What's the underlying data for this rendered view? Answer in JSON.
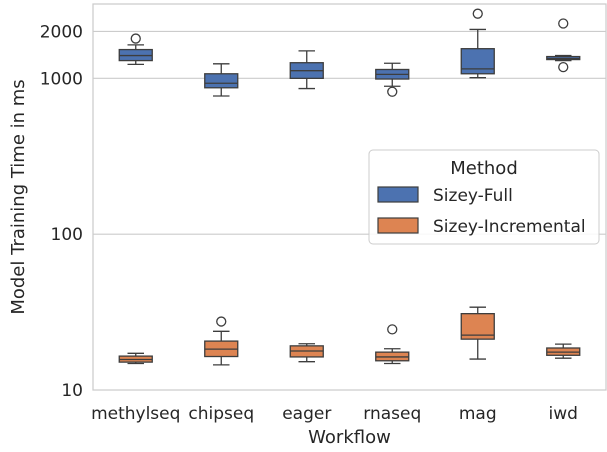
{
  "chart_data": {
    "type": "box",
    "title": "",
    "xlabel": "Workflow",
    "ylabel": "Model Training Time in ms",
    "y_scale": "log",
    "ylim": [
      10,
      3000
    ],
    "y_ticks": [
      10,
      100,
      1000,
      2000
    ],
    "y_tick_labels": [
      "10",
      "100",
      "1000",
      "2000"
    ],
    "grid": true,
    "categories": [
      "methylseq",
      "chipseq",
      "eager",
      "rnaseq",
      "mag",
      "iwd"
    ],
    "legend": {
      "title": "Method",
      "placement": "center-right"
    },
    "series": [
      {
        "name": "Sizey-Full",
        "color": "#4c72b0",
        "boxes": [
          {
            "whisker_low": 1230,
            "q1": 1300,
            "median": 1400,
            "q3": 1530,
            "whisker_high": 1640,
            "outliers": [
              1800
            ]
          },
          {
            "whisker_low": 770,
            "q1": 870,
            "median": 930,
            "q3": 1070,
            "whisker_high": 1240,
            "outliers": []
          },
          {
            "whisker_low": 860,
            "q1": 1000,
            "median": 1120,
            "q3": 1260,
            "whisker_high": 1500,
            "outliers": []
          },
          {
            "whisker_low": 890,
            "q1": 990,
            "median": 1060,
            "q3": 1140,
            "whisker_high": 1250,
            "outliers": [
              820
            ]
          },
          {
            "whisker_low": 1010,
            "q1": 1070,
            "median": 1150,
            "q3": 1550,
            "whisker_high": 2060,
            "outliers": [
              2600
            ]
          },
          {
            "whisker_low": 1300,
            "q1": 1320,
            "median": 1340,
            "q3": 1380,
            "whisker_high": 1400,
            "outliers": [
              2250,
              1180
            ]
          }
        ]
      },
      {
        "name": "Sizey-Incremental",
        "color": "#dd8452",
        "boxes": [
          {
            "whisker_low": 14.8,
            "q1": 15.1,
            "median": 15.7,
            "q3": 16.5,
            "whisker_high": 17.2,
            "outliers": []
          },
          {
            "whisker_low": 14.5,
            "q1": 16.4,
            "median": 18.3,
            "q3": 20.6,
            "whisker_high": 23.8,
            "outliers": [
              27.5
            ]
          },
          {
            "whisker_low": 15.2,
            "q1": 16.3,
            "median": 17.8,
            "q3": 19.2,
            "whisker_high": 19.8,
            "outliers": []
          },
          {
            "whisker_low": 14.8,
            "q1": 15.4,
            "median": 16.3,
            "q3": 17.5,
            "whisker_high": 18.4,
            "outliers": [
              24.5
            ]
          },
          {
            "whisker_low": 15.8,
            "q1": 21.2,
            "median": 22.5,
            "q3": 30.9,
            "whisker_high": 34.0,
            "outliers": []
          },
          {
            "whisker_low": 16.0,
            "q1": 16.7,
            "median": 17.5,
            "q3": 18.6,
            "whisker_high": 19.7,
            "outliers": []
          }
        ]
      }
    ]
  }
}
